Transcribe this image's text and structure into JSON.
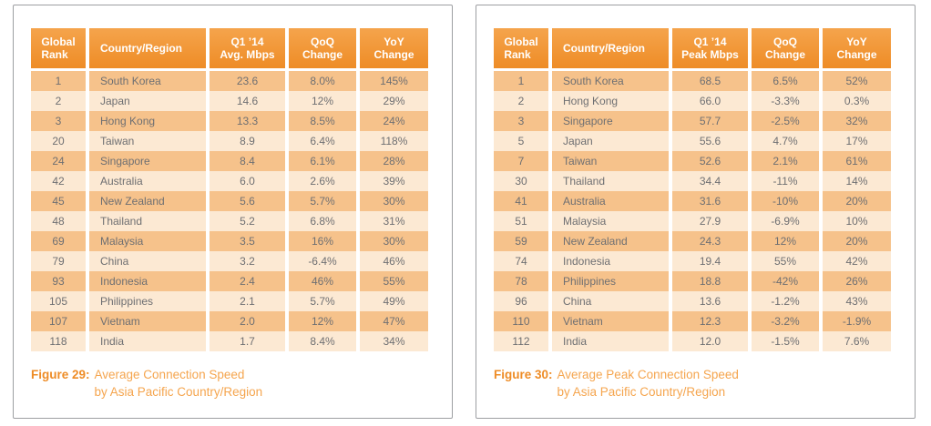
{
  "colors": {
    "header_top": "#f5a44c",
    "header_bottom": "#ee8c26",
    "row_dark": "#f6c28b",
    "row_light": "#fce9d3",
    "text_gray": "#6e6f72",
    "caption_label": "#ee8c26",
    "caption_text": "#f5a54e",
    "panel_border": "#9d9fa2"
  },
  "tables": [
    {
      "figure_id": "figure-29",
      "columns": [
        "Global\nRank",
        "Country/Region",
        "Q1 ’14\nAvg. Mbps",
        "QoQ\nChange",
        "YoY\nChange"
      ],
      "rows": [
        [
          "1",
          "South Korea",
          "23.6",
          "8.0%",
          "145%"
        ],
        [
          "2",
          "Japan",
          "14.6",
          "12%",
          "29%"
        ],
        [
          "3",
          "Hong Kong",
          "13.3",
          "8.5%",
          "24%"
        ],
        [
          "20",
          "Taiwan",
          "8.9",
          "6.4%",
          "118%"
        ],
        [
          "24",
          "Singapore",
          "8.4",
          "6.1%",
          "28%"
        ],
        [
          "42",
          "Australia",
          "6.0",
          "2.6%",
          "39%"
        ],
        [
          "45",
          "New Zealand",
          "5.6",
          "5.7%",
          "30%"
        ],
        [
          "48",
          "Thailand",
          "5.2",
          "6.8%",
          "31%"
        ],
        [
          "69",
          "Malaysia",
          "3.5",
          "16%",
          "30%"
        ],
        [
          "79",
          "China",
          "3.2",
          "-6.4%",
          "46%"
        ],
        [
          "93",
          "Indonesia",
          "2.4",
          "46%",
          "55%"
        ],
        [
          "105",
          "Philippines",
          "2.1",
          "5.7%",
          "49%"
        ],
        [
          "107",
          "Vietnam",
          "2.0",
          "12%",
          "47%"
        ],
        [
          "118",
          "India",
          "1.7",
          "8.4%",
          "34%"
        ]
      ],
      "caption": {
        "label": "Figure 29:",
        "line1": "Average Connection Speed",
        "line2": "by Asia Pacific Country/Region"
      }
    },
    {
      "figure_id": "figure-30",
      "columns": [
        "Global\nRank",
        "Country/Region",
        "Q1 ’14\nPeak Mbps",
        "QoQ\nChange",
        "YoY\nChange"
      ],
      "rows": [
        [
          "1",
          "South Korea",
          "68.5",
          "6.5%",
          "52%"
        ],
        [
          "2",
          "Hong Kong",
          "66.0",
          "-3.3%",
          "0.3%"
        ],
        [
          "3",
          "Singapore",
          "57.7",
          "-2.5%",
          "32%"
        ],
        [
          "5",
          "Japan",
          "55.6",
          "4.7%",
          "17%"
        ],
        [
          "7",
          "Taiwan",
          "52.6",
          "2.1%",
          "61%"
        ],
        [
          "30",
          "Thailand",
          "34.4",
          "-11%",
          "14%"
        ],
        [
          "41",
          "Australia",
          "31.6",
          "-10%",
          "20%"
        ],
        [
          "51",
          "Malaysia",
          "27.9",
          "-6.9%",
          "10%"
        ],
        [
          "59",
          "New Zealand",
          "24.3",
          "12%",
          "20%"
        ],
        [
          "74",
          "Indonesia",
          "19.4",
          "55%",
          "42%"
        ],
        [
          "78",
          "Philippines",
          "18.8",
          "-42%",
          "26%"
        ],
        [
          "96",
          "China",
          "13.6",
          "-1.2%",
          "43%"
        ],
        [
          "110",
          "Vietnam",
          "12.3",
          "-3.2%",
          "-1.9%"
        ],
        [
          "112",
          "India",
          "12.0",
          "-1.5%",
          "7.6%"
        ]
      ],
      "caption": {
        "label": "Figure 30:",
        "line1": "Average Peak Connection Speed",
        "line2": "by Asia Pacific Country/Region"
      }
    }
  ]
}
